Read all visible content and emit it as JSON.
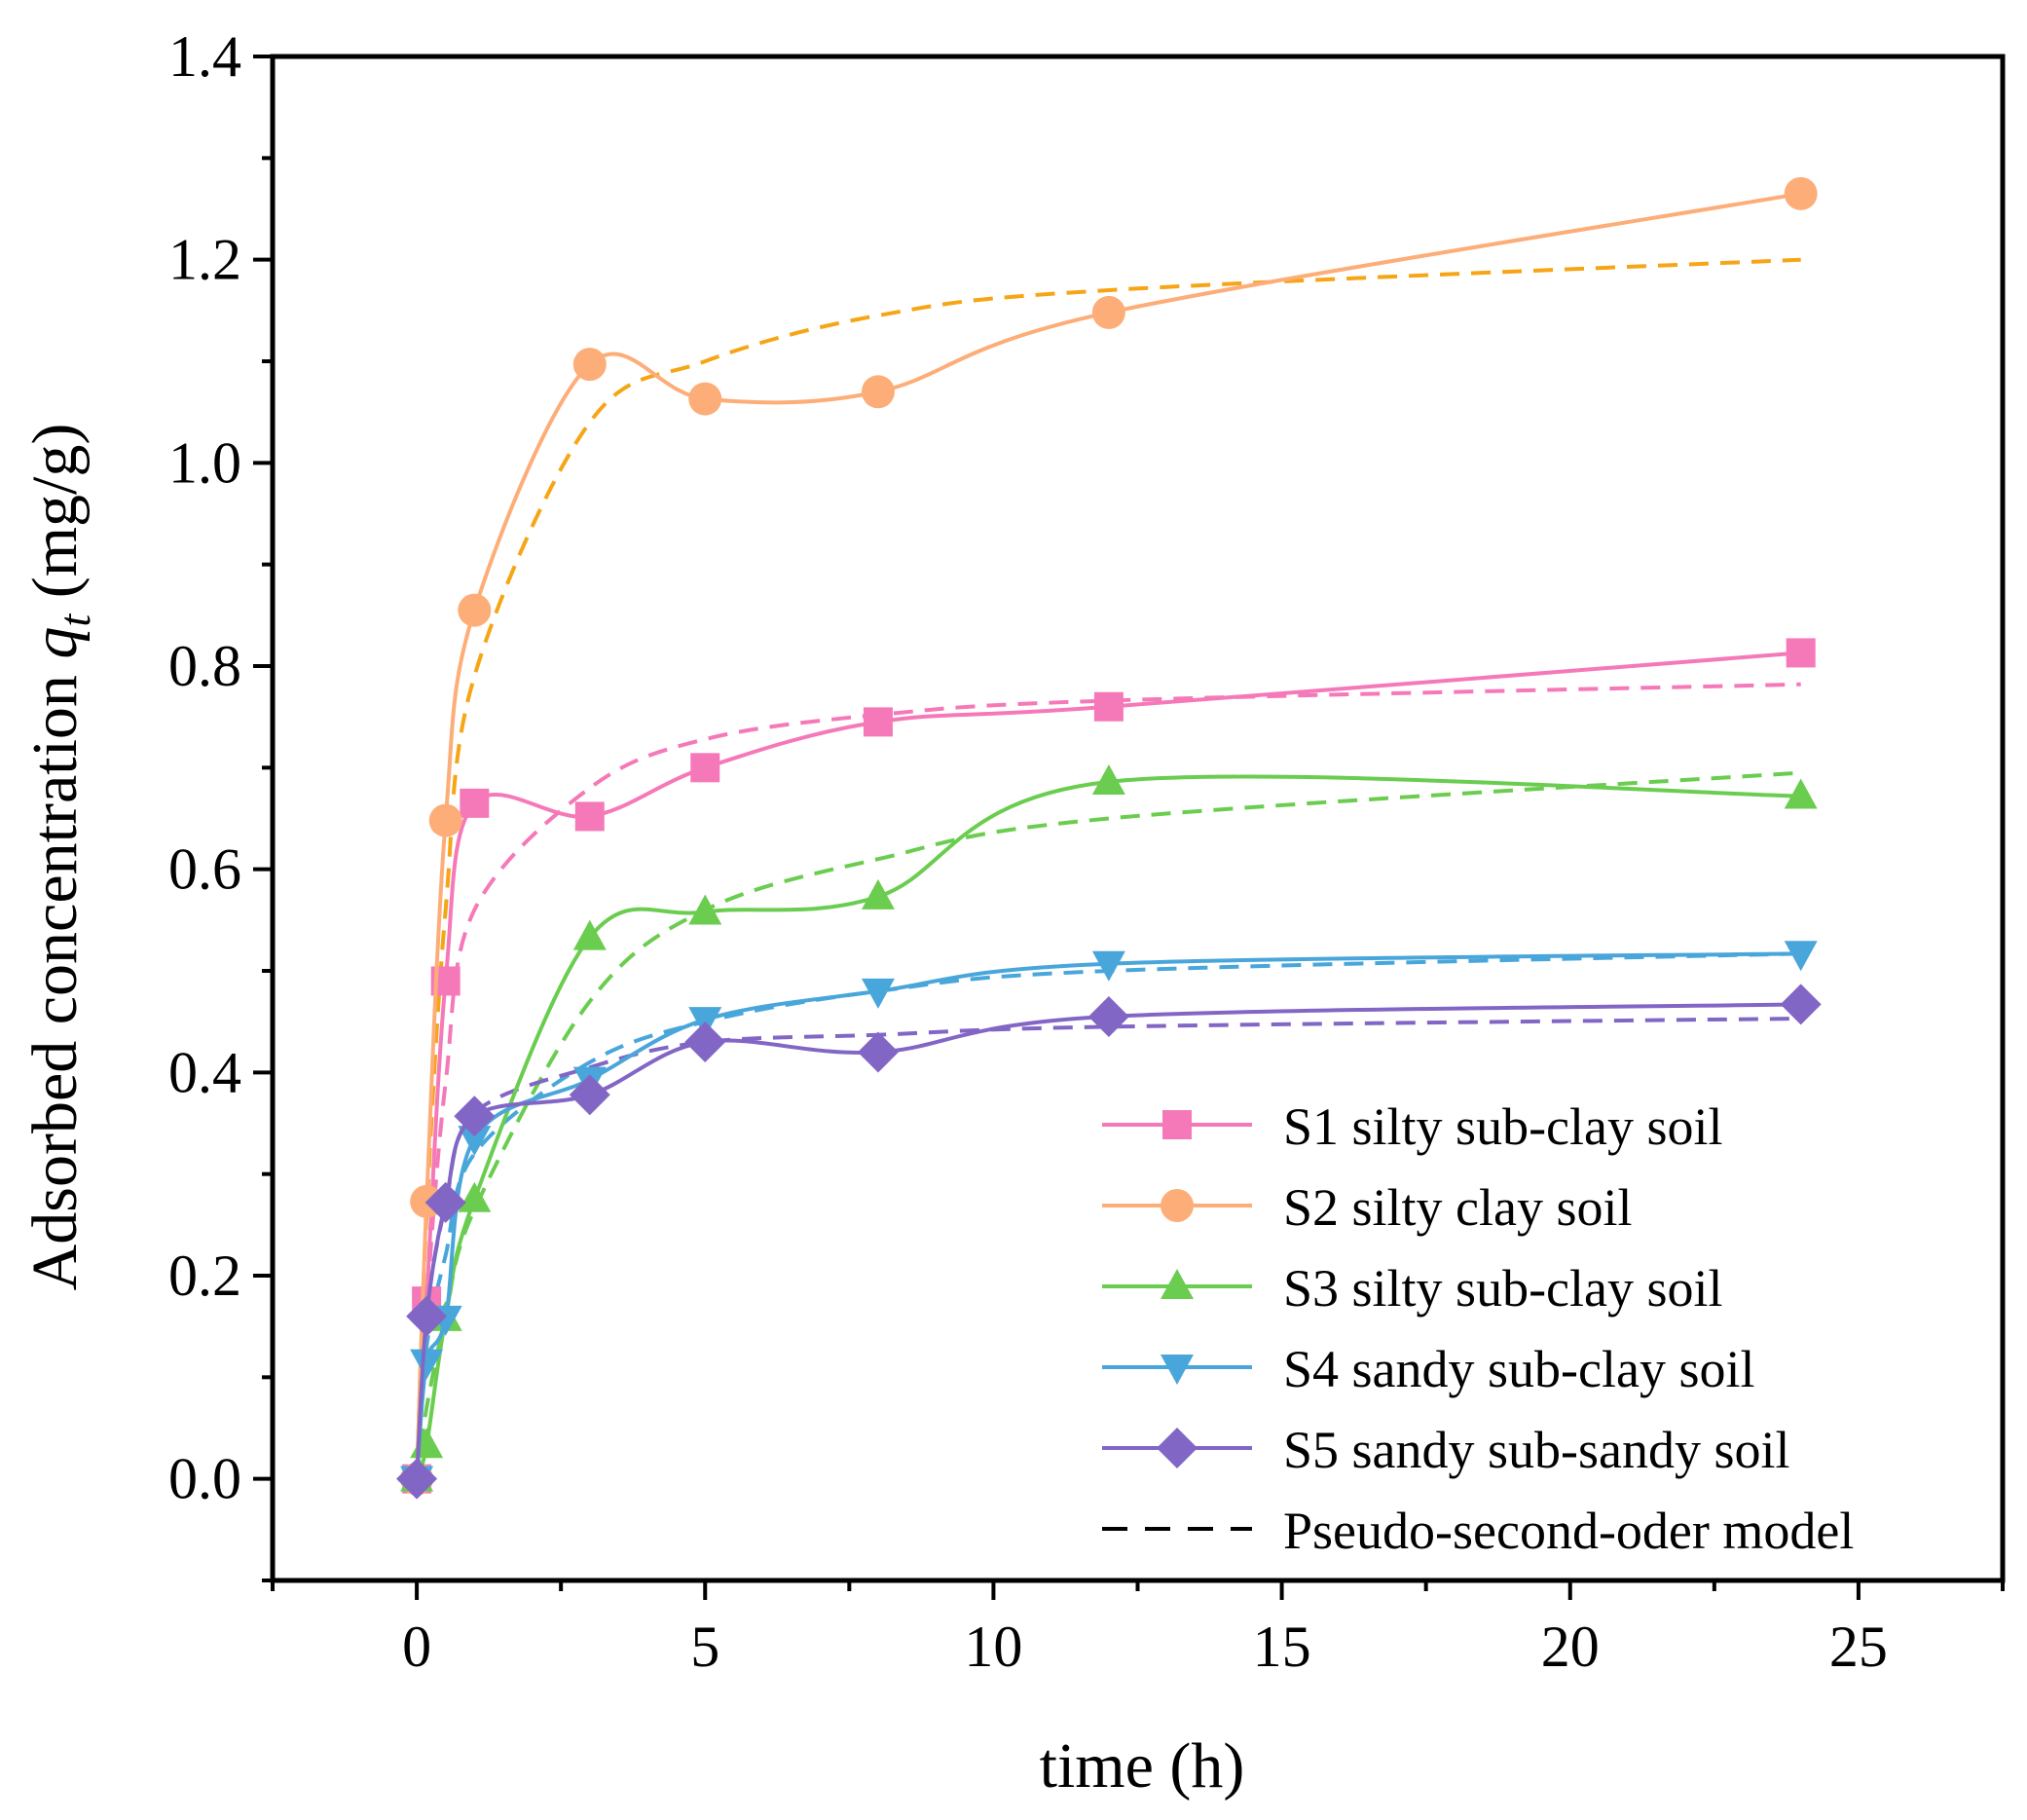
{
  "chart_data": {
    "type": "line",
    "title": "",
    "xlabel": "time (h)",
    "ylabel": {
      "prefix": "Adsorbed concentration ",
      "var": "q",
      "sub": "t",
      "suffix": " (mg/g)"
    },
    "xlim": [
      -2.5,
      27.5
    ],
    "ylim": [
      -0.1,
      1.4
    ],
    "xticks": [
      "0",
      "5",
      "10",
      "15",
      "20",
      "25"
    ],
    "xtick_values": [
      0,
      5,
      10,
      15,
      20,
      25
    ],
    "yticks": [
      "0.0",
      "0.2",
      "0.4",
      "0.6",
      "0.8",
      "1.0",
      "1.2",
      "1.4"
    ],
    "ytick_values": [
      0.0,
      0.2,
      0.4,
      0.6,
      0.8,
      1.0,
      1.2,
      1.4
    ],
    "grid": false,
    "legend_position": "bottom-right",
    "x": [
      0,
      0.17,
      0.5,
      1,
      3,
      5,
      8,
      12,
      24
    ],
    "series": [
      {
        "name": "S1 silty sub-clay soil",
        "color": "#f579b8",
        "marker": "square",
        "values": [
          0,
          0.175,
          0.49,
          0.665,
          0.652,
          0.7,
          0.745,
          0.76,
          0.813
        ],
        "model": [
          0,
          0.17,
          0.39,
          0.56,
          0.68,
          0.728,
          0.752,
          0.766,
          0.782
        ]
      },
      {
        "name": "S2 silty clay soil",
        "color": "#fcad78",
        "model_color": "#f5a516",
        "marker": "circle",
        "values": [
          0,
          0.273,
          0.648,
          0.855,
          1.097,
          1.063,
          1.07,
          1.148,
          1.265
        ],
        "model": [
          0,
          0.26,
          0.56,
          0.79,
          1.04,
          1.1,
          1.145,
          1.17,
          1.2
        ]
      },
      {
        "name": "S3 silty sub-clay soil",
        "color": "#6acd4f",
        "marker": "triangle-up",
        "values": [
          0,
          0.033,
          0.158,
          0.275,
          0.533,
          0.558,
          0.573,
          0.686,
          0.672
        ],
        "model": [
          0,
          0.07,
          0.16,
          0.265,
          0.47,
          0.56,
          0.61,
          0.65,
          0.695
        ]
      },
      {
        "name": "S4 sandy sub-clay soil",
        "color": "#49a6da",
        "marker": "triangle-down",
        "values": [
          0,
          0.115,
          0.158,
          0.335,
          0.393,
          0.452,
          0.48,
          0.507,
          0.517
        ],
        "model": [
          0,
          0.13,
          0.22,
          0.32,
          0.41,
          0.45,
          0.48,
          0.5,
          0.517
        ]
      },
      {
        "name": "S5 sandy sub-sandy soil",
        "color": "#8266c6",
        "marker": "diamond",
        "values": [
          0,
          0.16,
          0.272,
          0.357,
          0.378,
          0.43,
          0.42,
          0.455,
          0.467
        ],
        "model": [
          0,
          0.16,
          0.27,
          0.36,
          0.405,
          0.43,
          0.437,
          0.445,
          0.453
        ]
      }
    ],
    "model_legend": "Pseudo-second-oder model"
  }
}
